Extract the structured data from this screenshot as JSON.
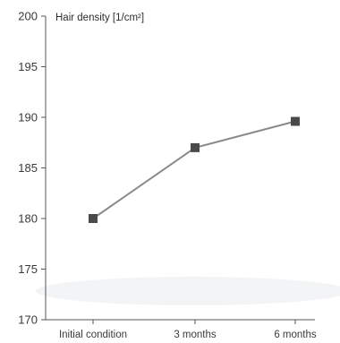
{
  "chart_data": {
    "type": "line",
    "title": "",
    "ylabel": "Hair density [1/cm²]",
    "xlabel": "",
    "categories": [
      "Initial condition",
      "3 months",
      "6 months"
    ],
    "series": [
      {
        "values": [
          180,
          187,
          189.6
        ]
      }
    ],
    "ylim": [
      170,
      200
    ],
    "yticks": [
      170,
      175,
      180,
      185,
      190,
      195,
      200
    ],
    "grid": false,
    "legend": "none",
    "colors": {
      "line": "#8a8a8a",
      "marker": "#4a4a4a",
      "axis": "#555555",
      "text": "#3a3a3a"
    }
  }
}
